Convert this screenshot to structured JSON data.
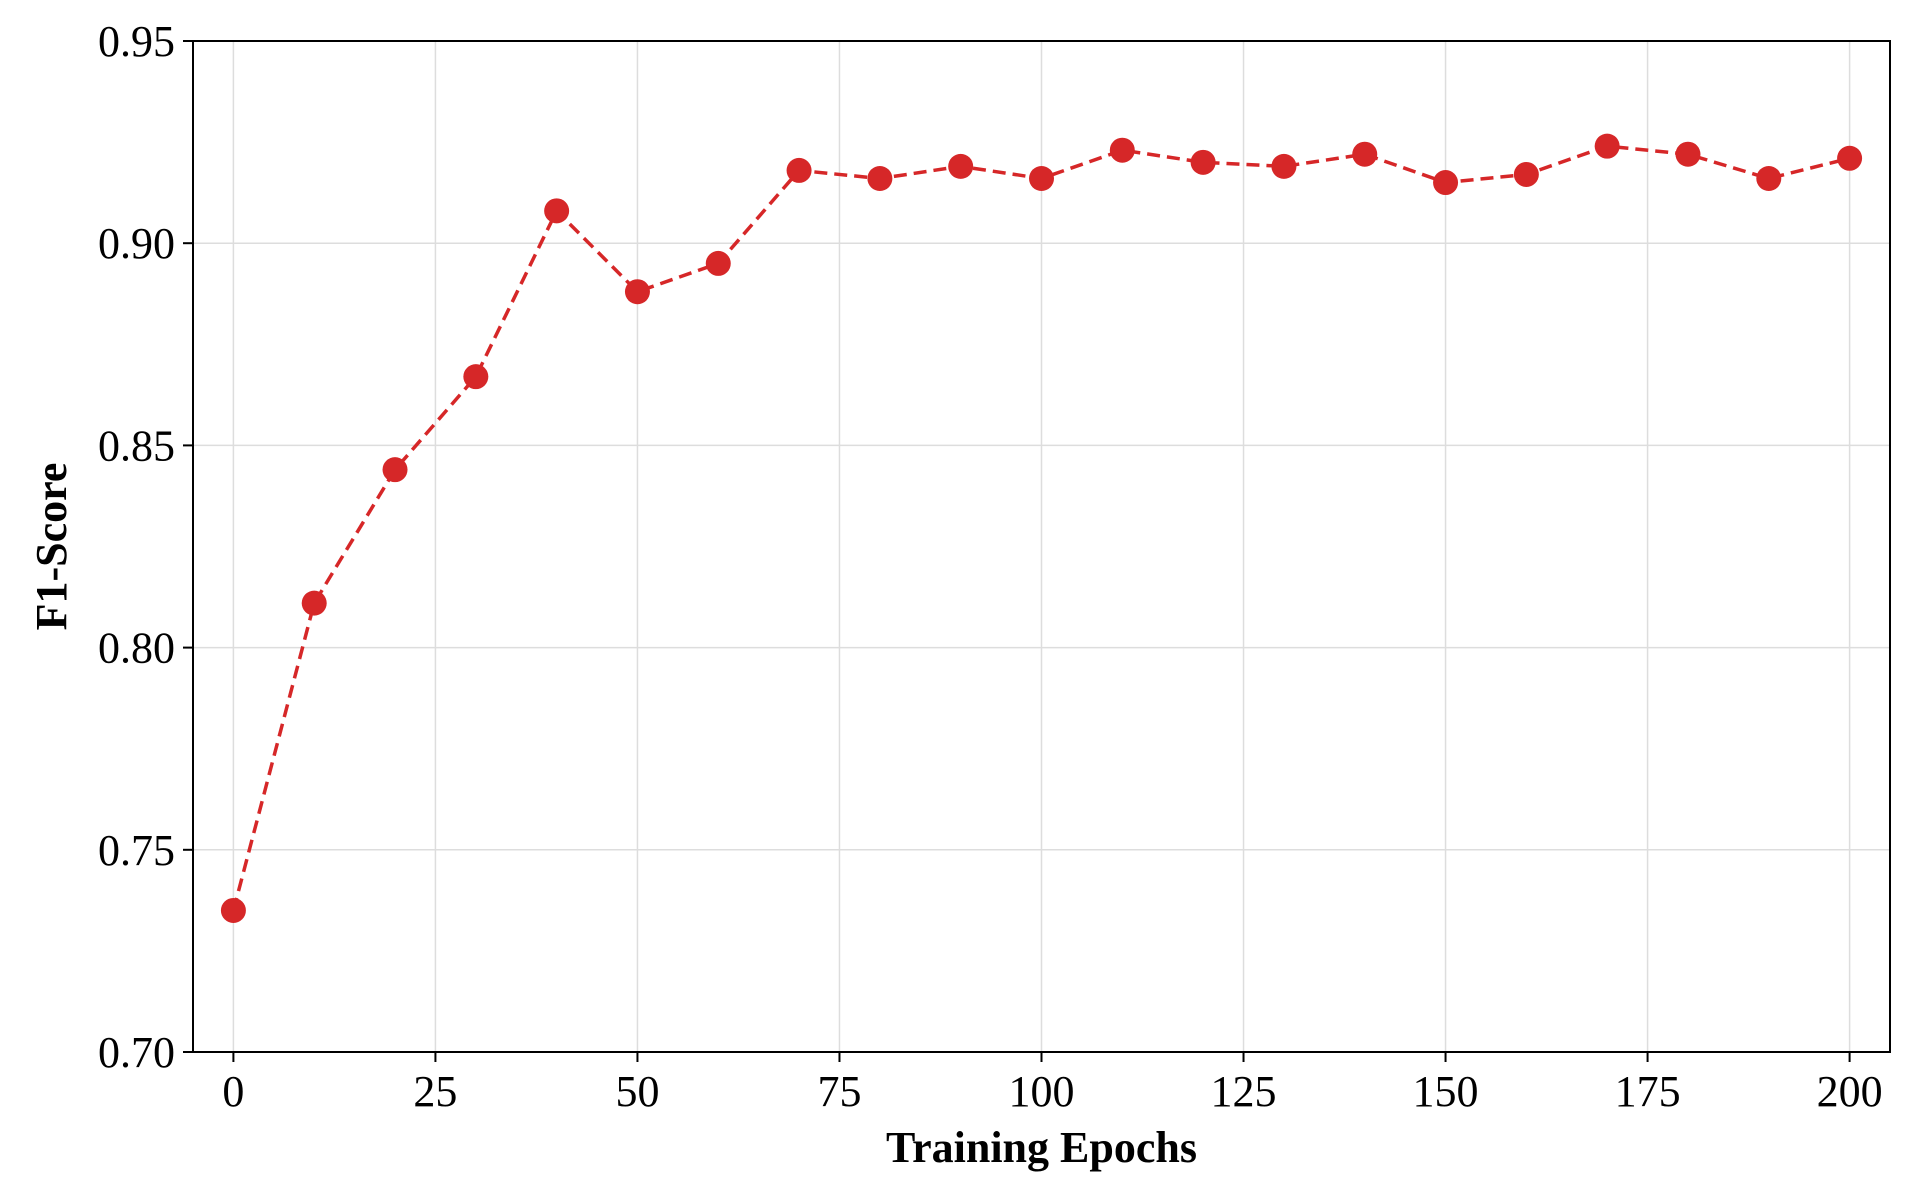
{
  "chart_data": {
    "type": "line",
    "title": "",
    "xlabel": "Training Epochs",
    "ylabel": "F1-Score",
    "xlim": [
      -5,
      205
    ],
    "ylim": [
      0.7,
      0.95
    ],
    "xticks": [
      0,
      25,
      50,
      75,
      100,
      125,
      150,
      175,
      200
    ],
    "xtick_labels": [
      "0",
      "25",
      "50",
      "75",
      "100",
      "125",
      "150",
      "175",
      "200"
    ],
    "yticks": [
      0.7,
      0.75,
      0.8,
      0.85,
      0.9,
      0.95
    ],
    "ytick_labels": [
      "0.70",
      "0.75",
      "0.80",
      "0.85",
      "0.90",
      "0.95"
    ],
    "grid": true,
    "legend": "none",
    "series": [
      {
        "color": "#d62728",
        "line_style": "dashed",
        "marker": "circle",
        "x": [
          0,
          10,
          20,
          30,
          40,
          50,
          60,
          70,
          80,
          90,
          100,
          110,
          120,
          130,
          140,
          150,
          160,
          170,
          180,
          190,
          200
        ],
        "y": [
          0.735,
          0.811,
          0.844,
          0.867,
          0.908,
          0.888,
          0.895,
          0.918,
          0.916,
          0.919,
          0.916,
          0.923,
          0.92,
          0.919,
          0.922,
          0.915,
          0.917,
          0.924,
          0.922,
          0.916,
          0.921
        ]
      }
    ]
  }
}
